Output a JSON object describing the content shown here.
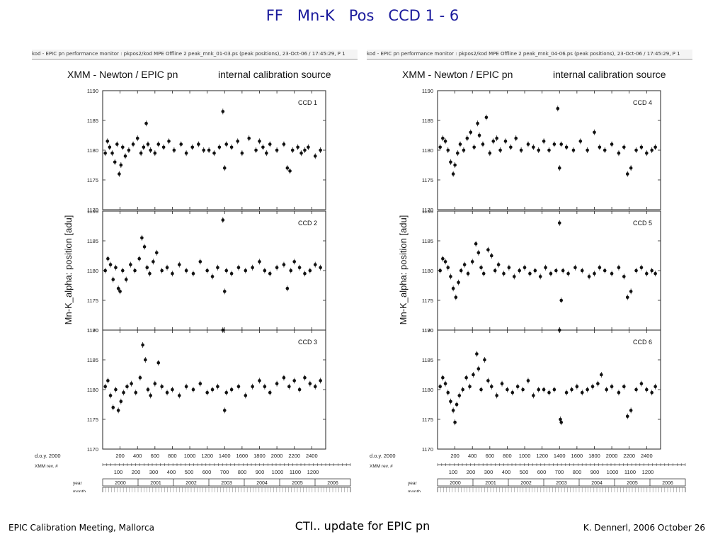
{
  "slide": {
    "title": "FF   Mn-K   Pos   CCD 1 - 6"
  },
  "footer": {
    "left": "EPIC Calibration Meeting, Mallorca",
    "center": "CTI.. update for EPIC pn",
    "right": "K. Dennerl, 2006 October 26"
  },
  "panels": [
    {
      "header": "kod - EPIC pn performance monitor : pkpos2/kod     MPE  Offline 2 peak_mnk_01-03.ps (peak positions), 23-Oct-06 / 17:45:29, P    1",
      "title_left": "XMM - Newton  /  EPIC pn",
      "title_right": "internal calibration source"
    },
    {
      "header": "kod - EPIC pn performance monitor : pkpos2/kod     MPE  Offline 2 peak_mnk_04-06.ps (peak positions), 23-Oct-06 / 17:45:29, P    1",
      "title_left": "XMM - Newton  /  EPIC pn",
      "title_right": "internal calibration source"
    }
  ],
  "axes": {
    "ylabel": "Mn-K_alpha:  position  [adu]",
    "ylim": [
      1170,
      1190
    ],
    "yticks": [
      "1170",
      "1175",
      "1180",
      "1185",
      "1190"
    ],
    "xlim": [
      0,
      2560
    ],
    "doy_label": "d.o.y. 2000",
    "doy_ticks": [
      "200",
      "400",
      "600",
      "800",
      "1000",
      "1200",
      "1400",
      "1600",
      "1800",
      "2000",
      "2200",
      "2400"
    ],
    "rev_label": "XMM rev. #",
    "rev_ticks": [
      "100",
      "200",
      "300",
      "400",
      "500",
      "600",
      "700",
      "800",
      "900",
      "1000",
      "1100",
      "1200"
    ],
    "year_label": "year",
    "years": [
      "2000",
      "2001",
      "2002",
      "2003",
      "2004",
      "2005",
      "2006"
    ],
    "month_label": "month"
  },
  "chart_data": [
    {
      "type": "scatter",
      "title": "CCD 1",
      "xlabel": "d.o.y. 2000",
      "ylabel": "Mn-K_alpha:  position  [adu]",
      "ylim": [
        1170,
        1190
      ],
      "grid": false,
      "series": [
        {
          "x": [
            30,
            55,
            80,
            110,
            140,
            165,
            190,
            210,
            230,
            260,
            300,
            350,
            400,
            440,
            470,
            500,
            520,
            550,
            600,
            640,
            700,
            760,
            820,
            900,
            960,
            1030,
            1100,
            1160,
            1220,
            1280,
            1340,
            1380,
            1400,
            1420,
            1480,
            1550,
            1600,
            1680,
            1760,
            1800,
            1840,
            1880,
            1920,
            2000,
            2080,
            2120,
            2150,
            2180,
            2240,
            2280,
            2320,
            2360,
            2440,
            2500
          ],
          "y": [
            1179.5,
            1181.5,
            1180.5,
            1179.5,
            1178.0,
            1181.0,
            1176.0,
            1177.5,
            1180.5,
            1179.0,
            1180.0,
            1181.0,
            1182.0,
            1179.5,
            1180.5,
            1184.5,
            1181.0,
            1180.0,
            1179.5,
            1181.0,
            1180.5,
            1181.5,
            1180.0,
            1181.0,
            1179.5,
            1180.5,
            1181.0,
            1180.0,
            1180.0,
            1179.5,
            1180.5,
            1186.5,
            1177.0,
            1181.0,
            1180.5,
            1181.5,
            1179.5,
            1182.0,
            1180.0,
            1181.5,
            1180.5,
            1179.5,
            1181.0,
            1180.0,
            1181.0,
            1177.0,
            1176.5,
            1180.0,
            1180.5,
            1179.5,
            1180.0,
            1180.5,
            1179.0,
            1180.0
          ]
        }
      ]
    },
    {
      "type": "scatter",
      "title": "CCD 2",
      "xlabel": "d.o.y. 2000",
      "ylabel": "Mn-K_alpha:  position  [adu]",
      "ylim": [
        1170,
        1190
      ],
      "grid": false,
      "series": [
        {
          "x": [
            30,
            60,
            90,
            120,
            150,
            180,
            200,
            230,
            270,
            320,
            370,
            420,
            450,
            480,
            510,
            540,
            580,
            620,
            680,
            740,
            800,
            880,
            960,
            1040,
            1120,
            1200,
            1260,
            1320,
            1380,
            1400,
            1420,
            1480,
            1560,
            1640,
            1720,
            1800,
            1860,
            1920,
            2000,
            2080,
            2120,
            2160,
            2200,
            2260,
            2320,
            2380,
            2440,
            2500
          ],
          "y": [
            1180.0,
            1182.0,
            1181.0,
            1178.5,
            1180.5,
            1177.0,
            1176.5,
            1180.0,
            1178.5,
            1181.0,
            1180.0,
            1182.0,
            1185.5,
            1184.0,
            1180.5,
            1179.5,
            1181.5,
            1183.0,
            1180.0,
            1180.5,
            1179.5,
            1181.0,
            1180.0,
            1179.5,
            1181.5,
            1180.0,
            1179.0,
            1180.5,
            1188.5,
            1176.5,
            1180.0,
            1179.5,
            1180.5,
            1180.0,
            1180.5,
            1181.5,
            1180.0,
            1179.5,
            1180.5,
            1181.0,
            1177.0,
            1180.0,
            1181.5,
            1180.5,
            1179.5,
            1180.0,
            1181.0,
            1180.5
          ]
        }
      ]
    },
    {
      "type": "scatter",
      "title": "CCD 3",
      "xlabel": "d.o.y. 2000",
      "ylabel": "Mn-K_alpha:  position  [adu]",
      "ylim": [
        1170,
        1190
      ],
      "grid": false,
      "series": [
        {
          "x": [
            30,
            60,
            90,
            120,
            150,
            180,
            210,
            240,
            280,
            330,
            380,
            430,
            460,
            490,
            520,
            550,
            600,
            640,
            680,
            740,
            800,
            880,
            960,
            1040,
            1120,
            1200,
            1260,
            1320,
            1380,
            1400,
            1420,
            1480,
            1560,
            1640,
            1720,
            1800,
            1860,
            1920,
            2000,
            2080,
            2140,
            2200,
            2260,
            2320,
            2380,
            2440,
            2500
          ],
          "y": [
            1180.5,
            1181.5,
            1179.0,
            1177.0,
            1180.0,
            1176.5,
            1178.0,
            1179.5,
            1180.5,
            1181.0,
            1179.5,
            1182.0,
            1187.5,
            1185.0,
            1180.0,
            1179.0,
            1181.0,
            1184.5,
            1180.5,
            1179.5,
            1180.0,
            1179.0,
            1180.5,
            1180.0,
            1181.0,
            1179.5,
            1180.0,
            1180.5,
            1190.0,
            1176.5,
            1179.5,
            1180.0,
            1180.5,
            1179.0,
            1180.5,
            1181.5,
            1180.5,
            1179.5,
            1181.0,
            1182.0,
            1180.5,
            1181.5,
            1180.0,
            1182.0,
            1181.0,
            1180.5,
            1181.5
          ]
        }
      ]
    },
    {
      "type": "scatter",
      "title": "CCD 4",
      "xlabel": "d.o.y. 2000",
      "ylabel": "Mn-K_alpha:  position  [adu]",
      "ylim": [
        1170,
        1190
      ],
      "grid": false,
      "series": [
        {
          "x": [
            30,
            60,
            90,
            120,
            150,
            180,
            200,
            230,
            260,
            300,
            340,
            380,
            420,
            460,
            480,
            520,
            560,
            600,
            640,
            680,
            720,
            780,
            840,
            900,
            960,
            1040,
            1100,
            1160,
            1220,
            1280,
            1340,
            1380,
            1400,
            1420,
            1480,
            1560,
            1640,
            1720,
            1800,
            1860,
            1920,
            2000,
            2080,
            2140,
            2180,
            2220,
            2280,
            2340,
            2400,
            2460,
            2500
          ],
          "y": [
            1180.5,
            1182.0,
            1181.5,
            1180.0,
            1178.0,
            1176.0,
            1177.5,
            1179.5,
            1181.0,
            1180.0,
            1182.0,
            1183.0,
            1180.5,
            1184.5,
            1182.5,
            1181.0,
            1185.5,
            1179.5,
            1181.5,
            1182.0,
            1180.0,
            1181.5,
            1180.5,
            1182.0,
            1180.0,
            1181.0,
            1180.5,
            1180.0,
            1181.5,
            1180.0,
            1181.0,
            1187.0,
            1177.0,
            1181.0,
            1180.5,
            1180.0,
            1181.5,
            1180.0,
            1183.0,
            1180.5,
            1180.0,
            1181.0,
            1179.5,
            1180.5,
            1176.0,
            1177.0,
            1180.0,
            1180.5,
            1179.5,
            1180.0,
            1180.5
          ]
        }
      ]
    },
    {
      "type": "scatter",
      "title": "CCD 5",
      "xlabel": "d.o.y. 2000",
      "ylabel": "Mn-K_alpha:  position  [adu]",
      "ylim": [
        1170,
        1190
      ],
      "grid": false,
      "series": [
        {
          "x": [
            30,
            60,
            90,
            120,
            150,
            180,
            210,
            240,
            270,
            310,
            350,
            400,
            440,
            470,
            500,
            530,
            580,
            620,
            660,
            700,
            760,
            820,
            880,
            940,
            1000,
            1060,
            1120,
            1180,
            1240,
            1300,
            1360,
            1400,
            1420,
            1440,
            1500,
            1580,
            1660,
            1740,
            1800,
            1860,
            1920,
            2000,
            2080,
            2140,
            2180,
            2220,
            2280,
            2340,
            2400,
            2460,
            2500
          ],
          "y": [
            1180.0,
            1182.0,
            1181.5,
            1180.5,
            1179.0,
            1177.0,
            1175.5,
            1178.0,
            1180.0,
            1181.0,
            1179.5,
            1181.5,
            1184.5,
            1183.0,
            1180.5,
            1179.5,
            1183.5,
            1182.5,
            1180.0,
            1181.0,
            1179.5,
            1180.5,
            1179.0,
            1180.0,
            1180.5,
            1179.5,
            1180.0,
            1179.0,
            1180.5,
            1179.5,
            1180.0,
            1188.0,
            1175.0,
            1180.0,
            1179.5,
            1180.5,
            1180.0,
            1179.0,
            1179.5,
            1180.5,
            1180.0,
            1179.5,
            1180.5,
            1179.0,
            1175.5,
            1176.5,
            1180.0,
            1180.5,
            1179.5,
            1180.0,
            1179.5
          ]
        }
      ]
    },
    {
      "type": "scatter",
      "title": "CCD 6",
      "xlabel": "d.o.y. 2000",
      "ylabel": "Mn-K_alpha:  position  [adu]",
      "ylim": [
        1170,
        1190
      ],
      "grid": false,
      "series": [
        {
          "x": [
            30,
            60,
            90,
            120,
            150,
            180,
            200,
            220,
            250,
            290,
            330,
            370,
            410,
            450,
            470,
            500,
            540,
            580,
            620,
            680,
            740,
            800,
            860,
            920,
            980,
            1040,
            1100,
            1160,
            1220,
            1280,
            1340,
            1400,
            1410,
            1420,
            1480,
            1540,
            1600,
            1660,
            1720,
            1780,
            1840,
            1880,
            1940,
            2000,
            2080,
            2140,
            2180,
            2220,
            2280,
            2340,
            2400,
            2460,
            2500
          ],
          "y": [
            1180.5,
            1182.0,
            1181.0,
            1179.5,
            1178.0,
            1176.5,
            1174.5,
            1177.5,
            1179.0,
            1180.0,
            1182.0,
            1180.5,
            1182.5,
            1186.0,
            1183.5,
            1180.0,
            1185.0,
            1181.5,
            1180.5,
            1179.0,
            1181.0,
            1180.0,
            1179.5,
            1180.5,
            1180.0,
            1181.5,
            1179.0,
            1180.0,
            1180.0,
            1179.5,
            1180.0,
            1190.0,
            1175.0,
            1174.5,
            1179.5,
            1180.0,
            1180.5,
            1179.5,
            1180.0,
            1180.5,
            1181.0,
            1182.5,
            1180.0,
            1180.5,
            1179.5,
            1180.5,
            1175.5,
            1176.5,
            1180.0,
            1181.0,
            1180.0,
            1179.5,
            1180.5
          ]
        }
      ]
    }
  ]
}
